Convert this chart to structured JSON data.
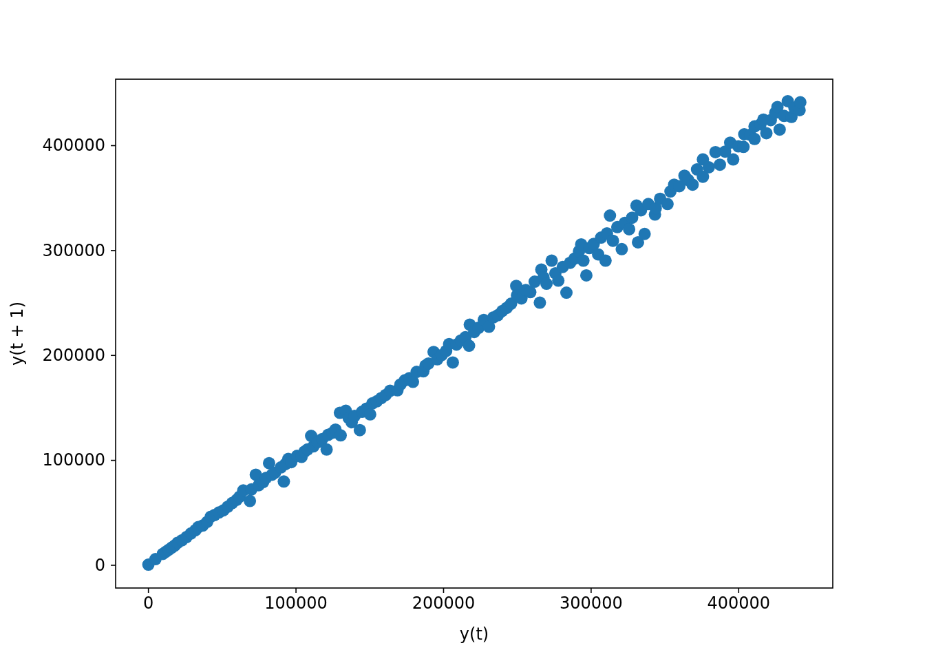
{
  "chart_data": {
    "type": "scatter",
    "xlabel": "y(t)",
    "ylabel": "y(t + 1)",
    "color": "#1f77b4",
    "marker": "circle",
    "xlim": [
      -22000,
      464000
    ],
    "ylim": [
      -22000,
      463000
    ],
    "xticks": [
      0,
      100000,
      200000,
      300000,
      400000
    ],
    "yticks": [
      0,
      100000,
      200000,
      300000,
      400000
    ],
    "x": [
      200,
      5000,
      10000,
      12000,
      14000,
      16000,
      18000,
      20000,
      23000,
      26000,
      29000,
      32000,
      34000,
      37000,
      40000,
      42500,
      45000,
      48000,
      51000,
      54000,
      57000,
      60000,
      62000,
      64500,
      69000,
      70000,
      73000,
      75000,
      78000,
      80000,
      82000,
      84000,
      86000,
      90000,
      92000,
      93000,
      95000,
      97000,
      101000,
      104000,
      106000,
      108000,
      110500,
      112000,
      115000,
      118000,
      121000,
      122000,
      125000,
      127000,
      130500,
      130000,
      134000,
      136000,
      138000,
      140000,
      143500,
      145000,
      148000,
      150500,
      152000,
      155000,
      158000,
      161000,
      164000,
      169000,
      171000,
      174000,
      177000,
      179500,
      182000,
      186500,
      188000,
      190000,
      193500,
      196000,
      199000,
      202000,
      204000,
      206500,
      209000,
      212000,
      215000,
      217500,
      218000,
      221000,
      224000,
      227500,
      231000,
      234000,
      237000,
      240000,
      243000,
      246000,
      249500,
      250000,
      253000,
      256000,
      259000,
      262000,
      265500,
      266500,
      268000,
      270000,
      273500,
      276000,
      278000,
      281000,
      283500,
      286000,
      289000,
      292000,
      293500,
      295000,
      297000,
      299000,
      302000,
      305000,
      307000,
      310000,
      311000,
      313000,
      315000,
      318000,
      321000,
      323000,
      326000,
      328000,
      332000,
      331000,
      334000,
      336500,
      339000,
      343500,
      344000,
      347000,
      352000,
      354000,
      356500,
      360000,
      363500,
      366000,
      369000,
      372000,
      376000,
      376000,
      380000,
      384500,
      387500,
      391000,
      394500,
      396500,
      400000,
      403500,
      404000,
      408000,
      411000,
      411000,
      415000,
      417000,
      419000,
      422000,
      425000,
      426500,
      428000,
      431000,
      433500,
      436000,
      438000,
      441500,
      442000
    ],
    "values": [
      300,
      5500,
      10500,
      12500,
      14500,
      16500,
      18500,
      21000,
      23500,
      26500,
      30000,
      33000,
      36000,
      37500,
      41000,
      46000,
      47500,
      50000,
      52000,
      55500,
      59000,
      62000,
      65000,
      71000,
      61000,
      72000,
      86000,
      76000,
      79000,
      83000,
      97000,
      86000,
      88000,
      93000,
      79500,
      96000,
      101000,
      98000,
      104000,
      103000,
      108000,
      110000,
      123000,
      113000,
      117000,
      120000,
      110000,
      124000,
      126000,
      129000,
      123500,
      145000,
      147000,
      140000,
      136000,
      142000,
      128500,
      146000,
      149000,
      143500,
      154000,
      156000,
      159000,
      162000,
      166000,
      166500,
      172000,
      176000,
      178000,
      174500,
      184000,
      184500,
      190000,
      192000,
      203000,
      196000,
      200000,
      204000,
      210500,
      193000,
      210000,
      214000,
      217000,
      209000,
      229000,
      222000,
      226000,
      233500,
      227000,
      236000,
      238000,
      242000,
      245000,
      249000,
      266000,
      257000,
      254000,
      262000,
      260000,
      270000,
      250000,
      281500,
      274000,
      268000,
      290000,
      278000,
      271000,
      284000,
      259500,
      288000,
      292000,
      299000,
      305500,
      290000,
      276000,
      302000,
      306000,
      296000,
      312000,
      290000,
      316000,
      333000,
      309000,
      322000,
      301000,
      326000,
      320000,
      331000,
      307500,
      342500,
      338000,
      315500,
      344000,
      334000,
      340000,
      349000,
      344000,
      356000,
      362500,
      361000,
      371000,
      367000,
      362500,
      377000,
      386500,
      370000,
      379000,
      393500,
      381500,
      394000,
      402500,
      386500,
      399000,
      398500,
      410500,
      410000,
      406000,
      418000,
      420000,
      424500,
      411500,
      424000,
      431000,
      436500,
      415000,
      428000,
      442000,
      427000,
      436000,
      433500,
      441000
    ]
  }
}
